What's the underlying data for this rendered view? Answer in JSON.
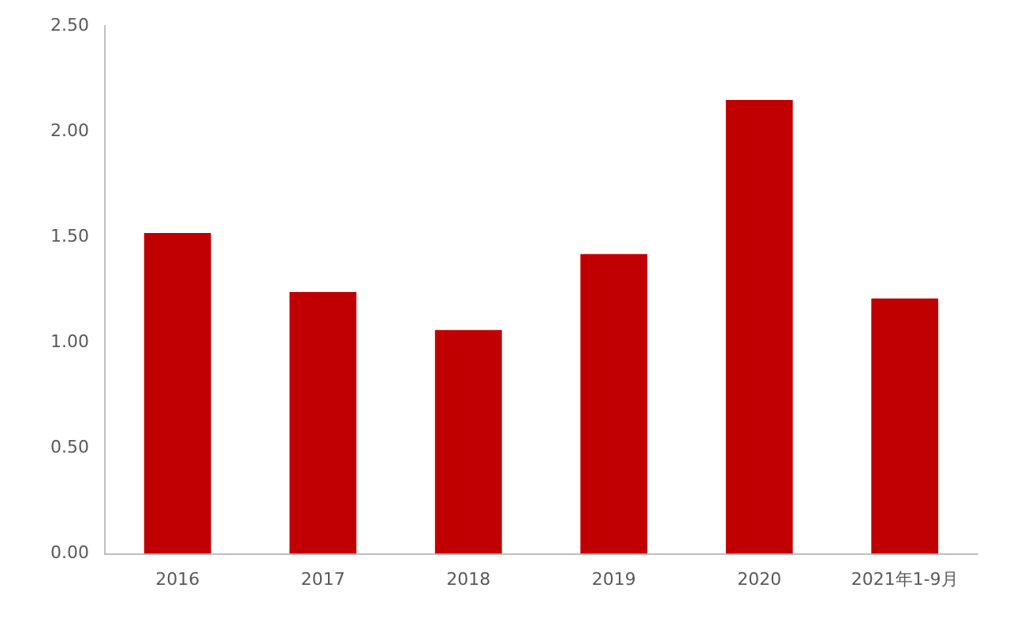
{
  "chart_data": {
    "type": "bar",
    "categories": [
      "2016",
      "2017",
      "2018",
      "2019",
      "2020",
      "2021年1-9月"
    ],
    "values": [
      1.52,
      1.24,
      1.06,
      1.42,
      2.15,
      1.21
    ],
    "color": "#c00000",
    "ylim": [
      0,
      2.5
    ],
    "yticks": [
      {
        "value": 0,
        "label": "0.00"
      },
      {
        "value": 0.5,
        "label": "0.50"
      },
      {
        "value": 1,
        "label": "1.00"
      },
      {
        "value": 1.5,
        "label": "1.50"
      },
      {
        "value": 2,
        "label": "2.00"
      },
      {
        "value": 2.5,
        "label": "2.50"
      }
    ],
    "grid": false,
    "legend": false
  }
}
